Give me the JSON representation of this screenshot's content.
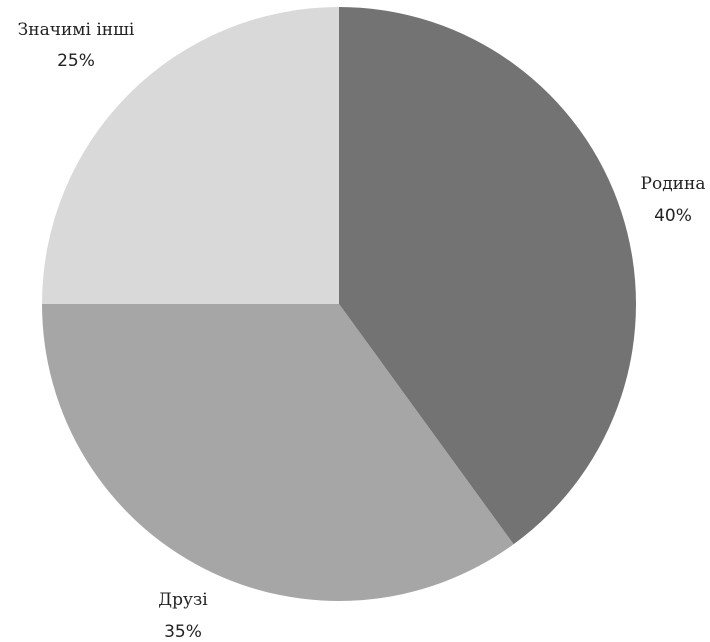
{
  "chart_data": {
    "type": "pie",
    "categories": [
      "Родина",
      "Друзі",
      "Значимі інші"
    ],
    "values": [
      40,
      35,
      25
    ],
    "value_labels": [
      "40%",
      "35%",
      "25%"
    ],
    "colors": [
      "#737373",
      "#a6a6a6",
      "#d9d9d9"
    ],
    "start_angle_deg": 0,
    "direction": "clockwise",
    "legend": "none"
  }
}
